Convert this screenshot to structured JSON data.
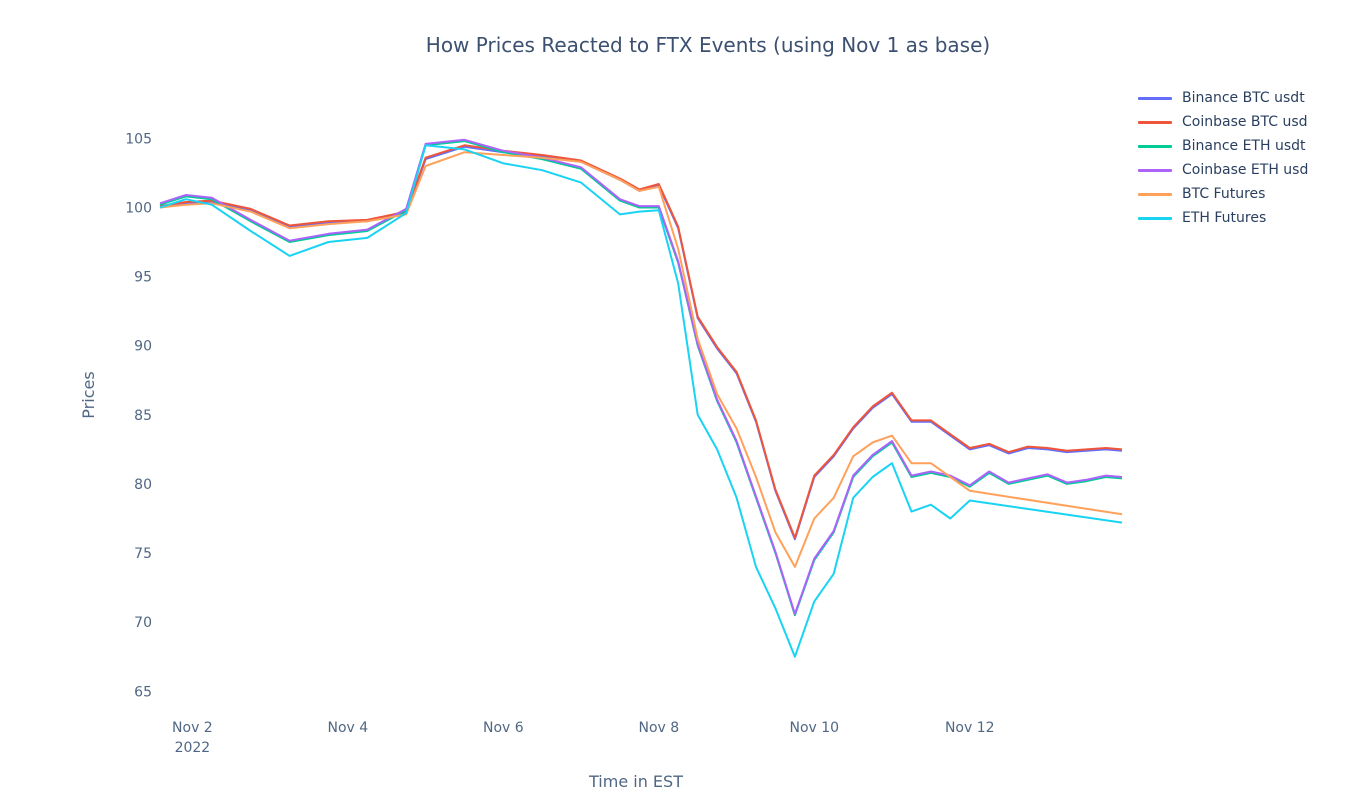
{
  "chart_data": {
    "type": "line",
    "title": "How Prices Reacted to FTX Events (using Nov 1 as base)",
    "xlabel": "Time in EST",
    "ylabel": "Prices",
    "xlim": [
      "2022-11-01 14:00",
      "2022-11-13 23:00"
    ],
    "ylim": [
      63.5,
      108.5
    ],
    "yticks": [
      65,
      70,
      75,
      80,
      85,
      90,
      95,
      100,
      105
    ],
    "xticks": [
      {
        "date": "2022-11-02",
        "label": "Nov 2",
        "sublabel": "2022"
      },
      {
        "date": "2022-11-04",
        "label": "Nov 4",
        "sublabel": ""
      },
      {
        "date": "2022-11-06",
        "label": "Nov 6",
        "sublabel": ""
      },
      {
        "date": "2022-11-08",
        "label": "Nov 8",
        "sublabel": ""
      },
      {
        "date": "2022-11-10",
        "label": "Nov 10",
        "sublabel": ""
      },
      {
        "date": "2022-11-12",
        "label": "Nov 12",
        "sublabel": ""
      }
    ],
    "grid": false,
    "legend_position": "top-right",
    "series": [
      {
        "name": "Binance BTC usdt",
        "color": "#636efa",
        "x": [
          "2022-11-01 14:00",
          "2022-11-01 22:00",
          "2022-11-02 06:00",
          "2022-11-02 18:00",
          "2022-11-03 06:00",
          "2022-11-03 18:00",
          "2022-11-04 06:00",
          "2022-11-04 18:00",
          "2022-11-05 00:00",
          "2022-11-05 12:00",
          "2022-11-06 00:00",
          "2022-11-06 12:00",
          "2022-11-07 00:00",
          "2022-11-07 12:00",
          "2022-11-07 18:00",
          "2022-11-08 00:00",
          "2022-11-08 06:00",
          "2022-11-08 12:00",
          "2022-11-08 18:00",
          "2022-11-09 00:00",
          "2022-11-09 06:00",
          "2022-11-09 12:00",
          "2022-11-09 18:00",
          "2022-11-10 00:00",
          "2022-11-10 06:00",
          "2022-11-10 12:00",
          "2022-11-10 18:00",
          "2022-11-11 00:00",
          "2022-11-11 06:00",
          "2022-11-11 12:00",
          "2022-11-11 18:00",
          "2022-11-12 00:00",
          "2022-11-12 06:00",
          "2022-11-12 12:00",
          "2022-11-12 18:00",
          "2022-11-13 00:00",
          "2022-11-13 06:00",
          "2022-11-13 12:00",
          "2022-11-13 18:00",
          "2022-11-13 23:00"
        ],
        "y": [
          100.0,
          100.3,
          100.4,
          99.8,
          98.6,
          98.9,
          99.0,
          99.6,
          103.5,
          104.4,
          104.0,
          103.7,
          103.3,
          102.0,
          101.2,
          101.6,
          98.5,
          92.0,
          89.8,
          88.0,
          84.5,
          79.5,
          76.0,
          80.5,
          82.0,
          84.0,
          85.5,
          86.5,
          84.5,
          84.5,
          83.5,
          82.5,
          82.8,
          82.2,
          82.6,
          82.5,
          82.3,
          82.4,
          82.5,
          82.4
        ]
      },
      {
        "name": "Coinbase BTC usd",
        "color": "#ef553b",
        "x": [
          "2022-11-01 14:00",
          "2022-11-01 22:00",
          "2022-11-02 06:00",
          "2022-11-02 18:00",
          "2022-11-03 06:00",
          "2022-11-03 18:00",
          "2022-11-04 06:00",
          "2022-11-04 18:00",
          "2022-11-05 00:00",
          "2022-11-05 12:00",
          "2022-11-06 00:00",
          "2022-11-06 12:00",
          "2022-11-07 00:00",
          "2022-11-07 12:00",
          "2022-11-07 18:00",
          "2022-11-08 00:00",
          "2022-11-08 06:00",
          "2022-11-08 12:00",
          "2022-11-08 18:00",
          "2022-11-09 00:00",
          "2022-11-09 06:00",
          "2022-11-09 12:00",
          "2022-11-09 18:00",
          "2022-11-10 00:00",
          "2022-11-10 06:00",
          "2022-11-10 12:00",
          "2022-11-10 18:00",
          "2022-11-11 00:00",
          "2022-11-11 06:00",
          "2022-11-11 12:00",
          "2022-11-11 18:00",
          "2022-11-12 00:00",
          "2022-11-12 06:00",
          "2022-11-12 12:00",
          "2022-11-12 18:00",
          "2022-11-13 00:00",
          "2022-11-13 06:00",
          "2022-11-13 12:00",
          "2022-11-13 18:00",
          "2022-11-13 23:00"
        ],
        "y": [
          100.1,
          100.4,
          100.5,
          99.9,
          98.7,
          99.0,
          99.1,
          99.7,
          103.6,
          104.5,
          104.1,
          103.8,
          103.4,
          102.1,
          101.3,
          101.7,
          98.6,
          92.1,
          89.9,
          88.1,
          84.6,
          79.6,
          76.1,
          80.6,
          82.1,
          84.1,
          85.6,
          86.6,
          84.6,
          84.6,
          83.6,
          82.6,
          82.9,
          82.3,
          82.7,
          82.6,
          82.4,
          82.5,
          82.6,
          82.5
        ]
      },
      {
        "name": "Binance ETH usdt",
        "color": "#00cc96",
        "x": [
          "2022-11-01 14:00",
          "2022-11-01 22:00",
          "2022-11-02 06:00",
          "2022-11-02 18:00",
          "2022-11-03 06:00",
          "2022-11-03 18:00",
          "2022-11-04 06:00",
          "2022-11-04 18:00",
          "2022-11-05 00:00",
          "2022-11-05 12:00",
          "2022-11-06 00:00",
          "2022-11-06 12:00",
          "2022-11-07 00:00",
          "2022-11-07 12:00",
          "2022-11-07 18:00",
          "2022-11-08 00:00",
          "2022-11-08 06:00",
          "2022-11-08 12:00",
          "2022-11-08 18:00",
          "2022-11-09 00:00",
          "2022-11-09 06:00",
          "2022-11-09 12:00",
          "2022-11-09 18:00",
          "2022-11-10 00:00",
          "2022-11-10 06:00",
          "2022-11-10 12:00",
          "2022-11-10 18:00",
          "2022-11-11 00:00",
          "2022-11-11 06:00",
          "2022-11-11 12:00",
          "2022-11-11 18:00",
          "2022-11-12 00:00",
          "2022-11-12 06:00",
          "2022-11-12 12:00",
          "2022-11-12 18:00",
          "2022-11-13 00:00",
          "2022-11-13 06:00",
          "2022-11-13 12:00",
          "2022-11-13 18:00",
          "2022-11-13 23:00"
        ],
        "y": [
          100.2,
          100.8,
          100.6,
          99.0,
          97.5,
          98.0,
          98.3,
          99.8,
          104.5,
          104.8,
          104.0,
          103.5,
          102.8,
          100.5,
          100.0,
          100.0,
          96.0,
          90.0,
          86.0,
          83.0,
          79.0,
          75.0,
          70.5,
          74.5,
          76.5,
          80.5,
          82.0,
          83.0,
          80.5,
          80.8,
          80.5,
          79.8,
          80.8,
          80.0,
          80.3,
          80.6,
          80.0,
          80.2,
          80.5,
          80.4
        ]
      },
      {
        "name": "Coinbase ETH usd",
        "color": "#ab63fa",
        "x": [
          "2022-11-01 14:00",
          "2022-11-01 22:00",
          "2022-11-02 06:00",
          "2022-11-02 18:00",
          "2022-11-03 06:00",
          "2022-11-03 18:00",
          "2022-11-04 06:00",
          "2022-11-04 18:00",
          "2022-11-05 00:00",
          "2022-11-05 12:00",
          "2022-11-06 00:00",
          "2022-11-06 12:00",
          "2022-11-07 00:00",
          "2022-11-07 12:00",
          "2022-11-07 18:00",
          "2022-11-08 00:00",
          "2022-11-08 06:00",
          "2022-11-08 12:00",
          "2022-11-08 18:00",
          "2022-11-09 00:00",
          "2022-11-09 06:00",
          "2022-11-09 12:00",
          "2022-11-09 18:00",
          "2022-11-10 00:00",
          "2022-11-10 06:00",
          "2022-11-10 12:00",
          "2022-11-10 18:00",
          "2022-11-11 00:00",
          "2022-11-11 06:00",
          "2022-11-11 12:00",
          "2022-11-11 18:00",
          "2022-11-12 00:00",
          "2022-11-12 06:00",
          "2022-11-12 12:00",
          "2022-11-12 18:00",
          "2022-11-13 00:00",
          "2022-11-13 06:00",
          "2022-11-13 12:00",
          "2022-11-13 18:00",
          "2022-11-13 23:00"
        ],
        "y": [
          100.3,
          100.9,
          100.7,
          99.1,
          97.6,
          98.1,
          98.4,
          99.9,
          104.6,
          104.9,
          104.1,
          103.6,
          102.9,
          100.6,
          100.1,
          100.1,
          96.1,
          90.1,
          86.1,
          83.1,
          79.1,
          75.1,
          70.6,
          74.6,
          76.6,
          80.6,
          82.1,
          83.1,
          80.6,
          80.9,
          80.6,
          79.9,
          80.9,
          80.1,
          80.4,
          80.7,
          80.1,
          80.3,
          80.6,
          80.5
        ]
      },
      {
        "name": "BTC Futures",
        "color": "#ffa15a",
        "x": [
          "2022-11-01 14:00",
          "2022-11-01 22:00",
          "2022-11-02 06:00",
          "2022-11-02 18:00",
          "2022-11-03 06:00",
          "2022-11-03 18:00",
          "2022-11-04 06:00",
          "2022-11-04 18:00",
          "2022-11-05 00:00",
          "2022-11-05 12:00",
          "2022-11-06 00:00",
          "2022-11-06 12:00",
          "2022-11-07 00:00",
          "2022-11-07 12:00",
          "2022-11-07 18:00",
          "2022-11-08 00:00",
          "2022-11-08 06:00",
          "2022-11-08 12:00",
          "2022-11-08 18:00",
          "2022-11-09 00:00",
          "2022-11-09 06:00",
          "2022-11-09 12:00",
          "2022-11-09 18:00",
          "2022-11-10 00:00",
          "2022-11-10 06:00",
          "2022-11-10 12:00",
          "2022-11-10 18:00",
          "2022-11-11 00:00",
          "2022-11-11 06:00",
          "2022-11-11 12:00",
          "2022-11-11 18:00",
          "2022-11-12 00:00",
          "2022-11-13 23:00"
        ],
        "y": [
          100.0,
          100.2,
          100.3,
          99.7,
          98.5,
          98.8,
          99.0,
          99.5,
          103.0,
          104.0,
          103.8,
          103.6,
          103.3,
          102.0,
          101.2,
          101.5,
          97.0,
          90.5,
          86.5,
          84.0,
          80.5,
          76.5,
          74.0,
          77.5,
          79.0,
          82.0,
          83.0,
          83.5,
          81.5,
          81.5,
          80.5,
          79.5,
          77.8
        ]
      },
      {
        "name": "ETH Futures",
        "color": "#19d3f3",
        "x": [
          "2022-11-01 14:00",
          "2022-11-01 22:00",
          "2022-11-02 06:00",
          "2022-11-02 18:00",
          "2022-11-03 06:00",
          "2022-11-03 18:00",
          "2022-11-04 06:00",
          "2022-11-04 18:00",
          "2022-11-05 00:00",
          "2022-11-05 12:00",
          "2022-11-06 00:00",
          "2022-11-06 12:00",
          "2022-11-07 00:00",
          "2022-11-07 12:00",
          "2022-11-07 18:00",
          "2022-11-08 00:00",
          "2022-11-08 06:00",
          "2022-11-08 12:00",
          "2022-11-08 18:00",
          "2022-11-09 00:00",
          "2022-11-09 06:00",
          "2022-11-09 12:00",
          "2022-11-09 18:00",
          "2022-11-10 00:00",
          "2022-11-10 06:00",
          "2022-11-10 12:00",
          "2022-11-10 18:00",
          "2022-11-11 00:00",
          "2022-11-11 06:00",
          "2022-11-11 12:00",
          "2022-11-11 18:00",
          "2022-11-12 00:00",
          "2022-11-13 23:00"
        ],
        "y": [
          100.0,
          100.6,
          100.2,
          98.3,
          96.5,
          97.5,
          97.8,
          99.6,
          104.5,
          104.2,
          103.2,
          102.7,
          101.8,
          99.5,
          99.7,
          99.8,
          94.5,
          85.0,
          82.5,
          79.0,
          74.0,
          71.0,
          67.5,
          71.5,
          73.5,
          79.0,
          80.5,
          81.5,
          78.0,
          78.5,
          77.5,
          78.8,
          77.2
        ]
      }
    ]
  }
}
